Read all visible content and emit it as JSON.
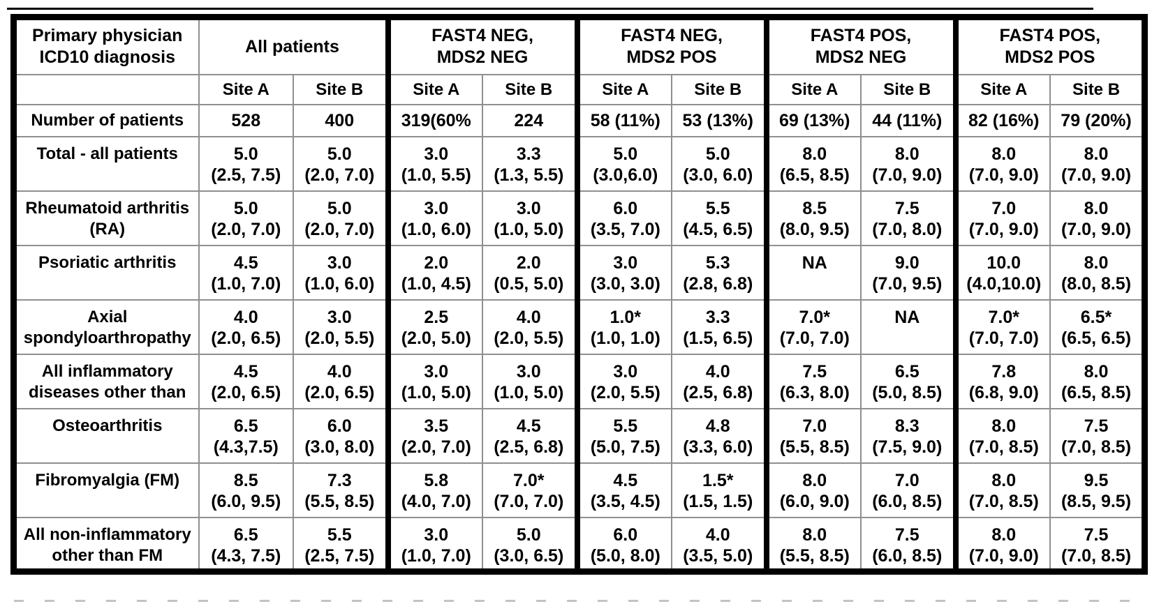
{
  "table": {
    "corner_header_lines": [
      "Primary physician",
      "ICD10  diagnosis"
    ],
    "groups": [
      {
        "id": "all-patients",
        "label_lines": [
          "All patients"
        ]
      },
      {
        "id": "fast4-neg-mds2-neg",
        "label_lines": [
          "FAST4 NEG,",
          "MDS2 NEG"
        ]
      },
      {
        "id": "fast4-neg-mds2-pos",
        "label_lines": [
          "FAST4 NEG,",
          "MDS2 POS"
        ]
      },
      {
        "id": "fast4-pos-mds2-neg",
        "label_lines": [
          "FAST4 POS,",
          "MDS2 NEG"
        ]
      },
      {
        "id": "fast4-pos-mds2-pos",
        "label_lines": [
          "FAST4 POS,",
          "MDS2 POS"
        ]
      }
    ],
    "site_labels": [
      "Site A",
      "Site B"
    ],
    "rows": [
      {
        "type": "single",
        "label_lines": [
          "Number of patients"
        ],
        "cells": [
          [
            "528"
          ],
          [
            "400"
          ],
          [
            "319(60%"
          ],
          [
            "224"
          ],
          [
            "58 (11%)"
          ],
          [
            "53 (13%)"
          ],
          [
            "69 (13%)"
          ],
          [
            "44 (11%)"
          ],
          [
            "82 (16%)"
          ],
          [
            "79 (20%)"
          ]
        ]
      },
      {
        "type": "double",
        "label_lines": [
          "Total - all patients",
          ""
        ],
        "cells": [
          [
            "5.0",
            "(2.5, 7.5)"
          ],
          [
            "5.0",
            "(2.0, 7.0)"
          ],
          [
            "3.0",
            "(1.0, 5.5)"
          ],
          [
            "3.3",
            "(1.3, 5.5)"
          ],
          [
            "5.0",
            "(3.0,6.0)"
          ],
          [
            "5.0",
            "(3.0, 6.0)"
          ],
          [
            "8.0",
            "(6.5, 8.5)"
          ],
          [
            "8.0",
            "(7.0, 9.0)"
          ],
          [
            "8.0",
            "(7.0, 9.0)"
          ],
          [
            "8.0",
            "(7.0, 9.0)"
          ]
        ]
      },
      {
        "type": "double",
        "label_lines": [
          "Rheumatoid arthritis",
          "(RA)"
        ],
        "cells": [
          [
            "5.0",
            "(2.0, 7.0)"
          ],
          [
            "5.0",
            "(2.0, 7.0)"
          ],
          [
            "3.0",
            "(1.0, 6.0)"
          ],
          [
            "3.0",
            "(1.0, 5.0)"
          ],
          [
            "6.0",
            "(3.5, 7.0)"
          ],
          [
            "5.5",
            "(4.5, 6.5)"
          ],
          [
            "8.5",
            "(8.0, 9.5)"
          ],
          [
            "7.5",
            "(7.0, 8.0)"
          ],
          [
            "7.0",
            "(7.0, 9.0)"
          ],
          [
            "8.0",
            "(7.0, 9.0)"
          ]
        ]
      },
      {
        "type": "double",
        "label_lines": [
          "Psoriatic arthritis",
          ""
        ],
        "cells": [
          [
            "4.5",
            "(1.0, 7.0)"
          ],
          [
            "3.0",
            "(1.0, 6.0)"
          ],
          [
            "2.0",
            "(1.0, 4.5)"
          ],
          [
            "2.0",
            "(0.5, 5.0)"
          ],
          [
            "3.0",
            "(3.0, 3.0)"
          ],
          [
            "5.3",
            "(2.8, 6.8)"
          ],
          [
            "NA",
            ""
          ],
          [
            "9.0",
            "(7.0, 9.5)"
          ],
          [
            "10.0",
            "(4.0,10.0)"
          ],
          [
            "8.0",
            "(8.0, 8.5)"
          ]
        ]
      },
      {
        "type": "double",
        "label_lines": [
          "Axial",
          "spondyloarthropathy"
        ],
        "cells": [
          [
            "4.0",
            "(2.0, 6.5)"
          ],
          [
            "3.0",
            "(2.0, 5.5)"
          ],
          [
            "2.5",
            "(2.0, 5.0)"
          ],
          [
            "4.0",
            "(2.0, 5.5)"
          ],
          [
            "1.0*",
            "(1.0, 1.0)"
          ],
          [
            "3.3",
            "(1.5, 6.5)"
          ],
          [
            "7.0*",
            "(7.0, 7.0)"
          ],
          [
            "NA",
            ""
          ],
          [
            "7.0*",
            "(7.0, 7.0)"
          ],
          [
            "6.5*",
            "(6.5, 6.5)"
          ]
        ]
      },
      {
        "type": "double",
        "label_lines": [
          "All inflammatory",
          "diseases other than"
        ],
        "cells": [
          [
            "4.5",
            "(2.0, 6.5)"
          ],
          [
            "4.0",
            "(2.0, 6.5)"
          ],
          [
            "3.0",
            "(1.0, 5.0)"
          ],
          [
            "3.0",
            "(1.0, 5.0)"
          ],
          [
            "3.0",
            "(2.0, 5.5)"
          ],
          [
            "4.0",
            "(2.5, 6.8)"
          ],
          [
            "7.5",
            "(6.3, 8.0)"
          ],
          [
            "6.5",
            "(5.0, 8.5)"
          ],
          [
            "7.8",
            "(6.8, 9.0)"
          ],
          [
            "8.0",
            "(6.5, 8.5)"
          ]
        ]
      },
      {
        "type": "double",
        "label_lines": [
          "Osteoarthritis",
          ""
        ],
        "cells": [
          [
            "6.5",
            "(4.3,7.5)"
          ],
          [
            "6.0",
            "(3.0, 8.0)"
          ],
          [
            "3.5",
            "(2.0, 7.0)"
          ],
          [
            "4.5",
            "(2.5, 6.8)"
          ],
          [
            "5.5",
            "(5.0, 7.5)"
          ],
          [
            "4.8",
            "(3.3, 6.0)"
          ],
          [
            "7.0",
            "(5.5, 8.5)"
          ],
          [
            "8.3",
            "(7.5, 9.0)"
          ],
          [
            "8.0",
            "(7.0, 8.5)"
          ],
          [
            "7.5",
            "(7.0, 8.5)"
          ]
        ]
      },
      {
        "type": "double",
        "label_lines": [
          "Fibromyalgia (FM)",
          ""
        ],
        "cells": [
          [
            "8.5",
            "(6.0, 9.5)"
          ],
          [
            "7.3",
            "(5.5, 8.5)"
          ],
          [
            "5.8",
            "(4.0, 7.0)"
          ],
          [
            "7.0*",
            "(7.0, 7.0)"
          ],
          [
            "4.5",
            "(3.5, 4.5)"
          ],
          [
            "1.5*",
            "(1.5, 1.5)"
          ],
          [
            "8.0",
            "(6.0, 9.0)"
          ],
          [
            "7.0",
            "(6.0, 8.5)"
          ],
          [
            "8.0",
            "(7.0, 8.5)"
          ],
          [
            "9.5",
            "(8.5, 9.5)"
          ]
        ]
      },
      {
        "type": "double",
        "label_lines": [
          "All non-inflammatory",
          "other than FM"
        ],
        "cells": [
          [
            "6.5",
            "(4.3, 7.5)"
          ],
          [
            "5.5",
            "(2.5, 7.5)"
          ],
          [
            "3.0",
            "(1.0, 7.0)"
          ],
          [
            "5.0",
            "(3.0, 6.5)"
          ],
          [
            "6.0",
            "(5.0, 8.0)"
          ],
          [
            "4.0",
            "(3.5, 5.0)"
          ],
          [
            "8.0",
            "(5.5, 8.5)"
          ],
          [
            "7.5",
            "(6.0, 8.5)"
          ],
          [
            "8.0",
            "(7.0, 9.0)"
          ],
          [
            "7.5",
            "(7.0, 8.5)"
          ]
        ]
      }
    ],
    "colors": {
      "background": "#ffffff",
      "text": "#000000",
      "outer_border": "#000000",
      "group_separator": "#000000",
      "grid_line": "#8f8f8f"
    }
  }
}
